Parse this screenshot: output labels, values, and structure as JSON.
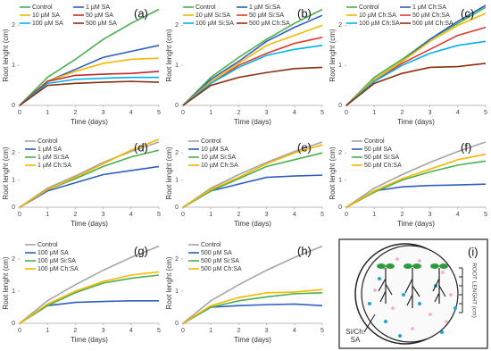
{
  "chart_data": [
    {
      "type": "line",
      "panel_label": "(a)",
      "xlabel": "Time (days)",
      "ylabel": "Root lenght (cm)",
      "x": [
        0,
        1,
        2,
        3,
        4,
        5
      ],
      "xlim": [
        0,
        5
      ],
      "xticks": [
        0,
        1,
        2,
        3,
        4,
        5
      ],
      "ylim": [
        0,
        2.5
      ],
      "yticks": [
        0,
        1,
        2
      ],
      "grid": false,
      "legend": "top-left",
      "series": [
        {
          "name": "Control",
          "color": "#4caf50",
          "values": [
            0,
            0.7,
            1.15,
            1.65,
            2.05,
            2.4
          ]
        },
        {
          "name": "1 µM SA",
          "color": "#2e5fbd",
          "values": [
            0,
            0.6,
            0.9,
            1.2,
            1.35,
            1.5
          ]
        },
        {
          "name": "10 µM SA",
          "color": "#f5b800",
          "values": [
            0,
            0.6,
            0.85,
            1.05,
            1.15,
            1.18
          ]
        },
        {
          "name": "50 µM SA",
          "color": "#c0282d",
          "values": [
            0,
            0.6,
            0.75,
            0.78,
            0.8,
            0.85
          ]
        },
        {
          "name": "100 µM SA",
          "color": "#00b0f0",
          "values": [
            0,
            0.55,
            0.65,
            0.68,
            0.7,
            0.7
          ]
        },
        {
          "name": "500 µM SA",
          "color": "#8b2f0f",
          "values": [
            0,
            0.5,
            0.55,
            0.58,
            0.6,
            0.58
          ]
        }
      ]
    },
    {
      "type": "line",
      "panel_label": "(b)",
      "xlabel": "Time (days)",
      "ylabel": "Root lenght (cm)",
      "x": [
        0,
        1,
        2,
        3,
        4,
        5
      ],
      "xlim": [
        0,
        5
      ],
      "xticks": [
        0,
        1,
        2,
        3,
        4,
        5
      ],
      "ylim": [
        0,
        2.5
      ],
      "yticks": [
        0,
        1,
        2
      ],
      "grid": false,
      "legend": "top-left",
      "series": [
        {
          "name": "Control",
          "color": "#4caf50",
          "values": [
            0,
            0.7,
            1.2,
            1.65,
            2.05,
            2.4
          ]
        },
        {
          "name": "1 µM Si:SA",
          "color": "#2e5fbd",
          "values": [
            0,
            0.65,
            1.1,
            1.6,
            1.95,
            2.25
          ]
        },
        {
          "name": "10 µM Si:SA",
          "color": "#f5b800",
          "values": [
            0,
            0.6,
            1.05,
            1.5,
            1.75,
            2.0
          ]
        },
        {
          "name": "50 µM Si:SA",
          "color": "#e03a2f",
          "values": [
            0,
            0.55,
            1.0,
            1.3,
            1.55,
            1.7
          ]
        },
        {
          "name": "100 µM Si:SA",
          "color": "#00b0f0",
          "values": [
            0,
            0.55,
            0.95,
            1.25,
            1.4,
            1.5
          ]
        },
        {
          "name": "500 µM Ch:SA",
          "color": "#8b2f0f",
          "values": [
            0,
            0.5,
            0.7,
            0.82,
            0.92,
            0.95
          ]
        }
      ]
    },
    {
      "type": "line",
      "panel_label": "(c)",
      "xlabel": "Time (days)",
      "ylabel": "Root lenght (cm)",
      "x": [
        0,
        1,
        2,
        3,
        4,
        5
      ],
      "xlim": [
        0,
        5
      ],
      "xticks": [
        0,
        1,
        2,
        3,
        4,
        5
      ],
      "ylim": [
        0,
        2.5
      ],
      "yticks": [
        0,
        1,
        2
      ],
      "grid": false,
      "legend": "top-left",
      "series": [
        {
          "name": "Control",
          "color": "#4caf50",
          "values": [
            0,
            0.7,
            1.15,
            1.65,
            2.05,
            2.45
          ]
        },
        {
          "name": "1 µM Ch:SA",
          "color": "#2e5fbd",
          "values": [
            0,
            0.65,
            1.1,
            1.65,
            2.1,
            2.5
          ]
        },
        {
          "name": "10 µM Ch:SA",
          "color": "#f5b800",
          "values": [
            0,
            0.65,
            1.1,
            1.6,
            2.0,
            2.3
          ]
        },
        {
          "name": "50 µM Ch:SA",
          "color": "#e03a2f",
          "values": [
            0,
            0.6,
            1.05,
            1.4,
            1.75,
            1.95
          ]
        },
        {
          "name": "100 µM Ch:SA",
          "color": "#00b0f0",
          "values": [
            0,
            0.6,
            1.0,
            1.3,
            1.5,
            1.6
          ]
        },
        {
          "name": "500 µM Ch:SA",
          "color": "#8b2f0f",
          "values": [
            0,
            0.55,
            0.8,
            0.95,
            0.97,
            1.05
          ]
        }
      ]
    },
    {
      "type": "line",
      "panel_label": "(d)",
      "xlabel": "Time (days)",
      "ylabel": "Root lenght (cm)",
      "x": [
        0,
        1,
        2,
        3,
        4,
        5
      ],
      "xlim": [
        0,
        5
      ],
      "xticks": [
        0,
        1,
        2,
        3,
        4,
        5
      ],
      "ylim": [
        0,
        2.5
      ],
      "yticks": [
        0,
        1,
        2
      ],
      "grid": false,
      "legend": "top-left",
      "series": [
        {
          "name": "Control",
          "color": "#a5a5a5",
          "values": [
            0,
            0.7,
            1.15,
            1.65,
            2.05,
            2.4
          ]
        },
        {
          "name": "1 µM SA",
          "color": "#2e5fbd",
          "values": [
            0,
            0.6,
            0.9,
            1.2,
            1.35,
            1.5
          ]
        },
        {
          "name": "1 µM Si:SA",
          "color": "#4caf50",
          "values": [
            0,
            0.65,
            1.05,
            1.5,
            1.85,
            2.1
          ]
        },
        {
          "name": "1 µM Ch:SA",
          "color": "#f5b800",
          "values": [
            0,
            0.65,
            1.1,
            1.6,
            2.1,
            2.5
          ]
        }
      ]
    },
    {
      "type": "line",
      "panel_label": "(e)",
      "xlabel": "Time (days)",
      "ylabel": "Root lenght (cm)",
      "x": [
        0,
        1,
        2,
        3,
        4,
        5
      ],
      "xlim": [
        0,
        5
      ],
      "xticks": [
        0,
        1,
        2,
        3,
        4,
        5
      ],
      "ylim": [
        0,
        2.5
      ],
      "yticks": [
        0,
        1,
        2
      ],
      "grid": false,
      "legend": "top-left",
      "series": [
        {
          "name": "Control",
          "color": "#a5a5a5",
          "values": [
            0,
            0.7,
            1.2,
            1.65,
            2.05,
            2.4
          ]
        },
        {
          "name": "10 µM SA",
          "color": "#2e5fbd",
          "values": [
            0,
            0.6,
            0.85,
            1.1,
            1.15,
            1.18
          ]
        },
        {
          "name": "10 µM Si:SA",
          "color": "#4caf50",
          "values": [
            0,
            0.6,
            1.05,
            1.5,
            1.75,
            2.0
          ]
        },
        {
          "name": "10 µM Ch:SA",
          "color": "#f5b800",
          "values": [
            0,
            0.65,
            1.1,
            1.6,
            2.0,
            2.3
          ]
        }
      ]
    },
    {
      "type": "line",
      "panel_label": "(f)",
      "xlabel": "Time (days)",
      "ylabel": "Root lenght (cm)",
      "x": [
        0,
        1,
        2,
        3,
        4,
        5
      ],
      "xlim": [
        0,
        5
      ],
      "xticks": [
        0,
        1,
        2,
        3,
        4,
        5
      ],
      "ylim": [
        0,
        2.5
      ],
      "yticks": [
        0,
        1,
        2
      ],
      "grid": false,
      "legend": "top-left",
      "series": [
        {
          "name": "Control",
          "color": "#a5a5a5",
          "values": [
            0,
            0.7,
            1.2,
            1.65,
            2.05,
            2.4
          ]
        },
        {
          "name": "50 µM SA",
          "color": "#2e5fbd",
          "values": [
            0,
            0.6,
            0.75,
            0.8,
            0.82,
            0.85
          ]
        },
        {
          "name": "50 µM Si:SA",
          "color": "#4caf50",
          "values": [
            0,
            0.55,
            1.0,
            1.3,
            1.55,
            1.7
          ]
        },
        {
          "name": "50 µM Ch:SA",
          "color": "#f5b800",
          "values": [
            0,
            0.6,
            1.05,
            1.4,
            1.75,
            1.95
          ]
        }
      ]
    },
    {
      "type": "line",
      "panel_label": "(g)",
      "xlabel": "Time (days)",
      "ylabel": "Root lenght (cm)",
      "x": [
        0,
        1,
        2,
        3,
        4,
        5
      ],
      "xlim": [
        0,
        5
      ],
      "xticks": [
        0,
        1,
        2,
        3,
        4,
        5
      ],
      "ylim": [
        0,
        2.5
      ],
      "yticks": [
        0,
        1,
        2
      ],
      "grid": false,
      "legend": "top-left",
      "series": [
        {
          "name": "Control",
          "color": "#a5a5a5",
          "values": [
            0,
            0.7,
            1.2,
            1.65,
            2.05,
            2.4
          ]
        },
        {
          "name": "100 µM SA",
          "color": "#2e5fbd",
          "values": [
            0,
            0.55,
            0.65,
            0.68,
            0.7,
            0.7
          ]
        },
        {
          "name": "100 µM Si:SA",
          "color": "#4caf50",
          "values": [
            0,
            0.55,
            0.95,
            1.25,
            1.4,
            1.5
          ]
        },
        {
          "name": "100 µM Ch:SA",
          "color": "#f5b800",
          "values": [
            0,
            0.6,
            1.0,
            1.3,
            1.5,
            1.6
          ]
        }
      ]
    },
    {
      "type": "line",
      "panel_label": "(h)",
      "xlabel": "Time (days)",
      "ylabel": "Root lenght (cm)",
      "x": [
        0,
        1,
        2,
        3,
        4,
        5
      ],
      "xlim": [
        0,
        5
      ],
      "xticks": [
        0,
        1,
        2,
        3,
        4,
        5
      ],
      "ylim": [
        0,
        2.5
      ],
      "yticks": [
        0,
        1,
        2
      ],
      "grid": false,
      "legend": "top-left",
      "series": [
        {
          "name": "Control",
          "color": "#a5a5a5",
          "values": [
            0,
            0.7,
            1.2,
            1.65,
            2.05,
            2.4
          ]
        },
        {
          "name": "500 µM SA",
          "color": "#2e5fbd",
          "values": [
            0,
            0.5,
            0.55,
            0.58,
            0.6,
            0.55
          ]
        },
        {
          "name": "500 µM Si:SA",
          "color": "#4caf50",
          "values": [
            0,
            0.5,
            0.7,
            0.82,
            0.92,
            0.95
          ]
        },
        {
          "name": "500 µM Ch:SA",
          "color": "#f5b800",
          "values": [
            0,
            0.55,
            0.8,
            0.95,
            0.97,
            1.05
          ]
        }
      ]
    }
  ],
  "diagram": {
    "label": "(i)",
    "axis_label": "ROOT LENGHT (cm)",
    "callout": [
      "Si/Ch:",
      "SA"
    ]
  }
}
